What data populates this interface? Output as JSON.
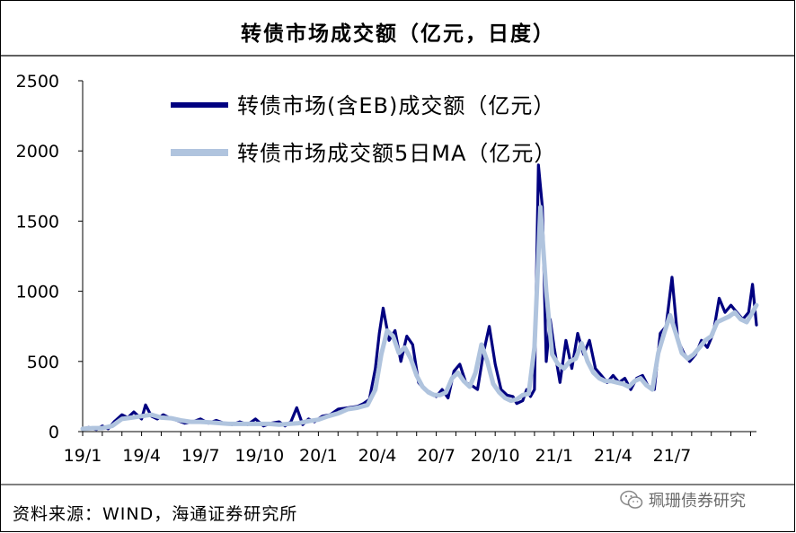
{
  "chart_data": {
    "type": "line",
    "title": "转债市场成交额（亿元，日度）",
    "xlabel": "",
    "ylabel": "",
    "ylim": [
      0,
      2500
    ],
    "yticks": [
      0,
      500,
      1000,
      1500,
      2000,
      2500
    ],
    "x_tick_labels": [
      "19/1",
      "19/4",
      "19/7",
      "19/10",
      "20/1",
      "20/4",
      "20/7",
      "20/10",
      "21/1",
      "21/4",
      "21/7"
    ],
    "x_range_months": [
      0,
      34.3
    ],
    "grid": false,
    "legend_position": "top-left",
    "series": [
      {
        "name": "转债市场(含EB)成交额（亿元）",
        "color": "#000080",
        "x": [
          0,
          0.3,
          0.7,
          1,
          1.3,
          1.6,
          2,
          2.3,
          2.6,
          3,
          3.2,
          3.5,
          3.8,
          4.1,
          4.4,
          4.8,
          5.2,
          5.6,
          6,
          6.4,
          6.8,
          7.2,
          7.6,
          8,
          8.4,
          8.8,
          9.2,
          9.6,
          10,
          10.3,
          10.6,
          10.9,
          11.2,
          11.5,
          11.8,
          12.2,
          12.6,
          13,
          13.5,
          14,
          14.3,
          14.6,
          14.9,
          15.1,
          15.3,
          15.6,
          15.9,
          16.2,
          16.5,
          16.8,
          17.1,
          17.4,
          17.7,
          18,
          18.3,
          18.6,
          18.9,
          19.2,
          19.5,
          19.8,
          20.1,
          20.4,
          20.7,
          21,
          21.3,
          21.6,
          21.9,
          22.1,
          22.4,
          22.6,
          22.8,
          23,
          23.2,
          23.4,
          23.6,
          23.8,
          24,
          24.3,
          24.6,
          24.9,
          25.2,
          25.5,
          25.8,
          26.1,
          26.4,
          26.7,
          27,
          27.3,
          27.6,
          27.9,
          28.2,
          28.5,
          28.8,
          29.1,
          29.4,
          29.7,
          30,
          30.3,
          30.6,
          30.9,
          31.2,
          31.5,
          31.8,
          32.1,
          32.4,
          32.7,
          33,
          33.3,
          33.6,
          33.9,
          34.1,
          34.3
        ],
        "values": [
          20,
          30,
          15,
          40,
          20,
          70,
          120,
          100,
          140,
          90,
          190,
          110,
          90,
          120,
          100,
          80,
          60,
          70,
          90,
          60,
          80,
          60,
          50,
          70,
          50,
          90,
          40,
          60,
          70,
          40,
          70,
          170,
          50,
          90,
          70,
          110,
          120,
          160,
          170,
          180,
          200,
          230,
          450,
          700,
          880,
          650,
          720,
          500,
          680,
          620,
          350,
          300,
          280,
          250,
          300,
          240,
          430,
          480,
          350,
          330,
          300,
          560,
          750,
          480,
          300,
          260,
          250,
          200,
          220,
          300,
          250,
          300,
          1900,
          1600,
          500,
          800,
          600,
          350,
          650,
          450,
          700,
          550,
          650,
          450,
          400,
          350,
          400,
          350,
          380,
          300,
          380,
          400,
          320,
          300,
          700,
          750,
          1100,
          650,
          560,
          500,
          550,
          650,
          600,
          700,
          950,
          850,
          900,
          850,
          800,
          850,
          1050,
          760
        ],
        "values_note": "approximate daily turnover read from chart (100 million yuan)"
      },
      {
        "name": "转债市场成交额5日MA（亿元）",
        "color": "#b0c4de",
        "x": [
          0,
          0.5,
          1,
          1.5,
          2,
          2.5,
          3,
          3.5,
          4,
          4.5,
          5,
          5.5,
          6,
          6.5,
          7,
          7.5,
          8,
          8.5,
          9,
          9.5,
          10,
          10.5,
          11,
          11.5,
          12,
          12.5,
          13,
          13.5,
          14,
          14.5,
          14.9,
          15.2,
          15.5,
          15.8,
          16.1,
          16.4,
          16.7,
          17,
          17.3,
          17.6,
          17.9,
          18.2,
          18.5,
          18.8,
          19.1,
          19.4,
          19.7,
          20,
          20.3,
          20.6,
          20.9,
          21.2,
          21.5,
          21.8,
          22.1,
          22.4,
          22.7,
          23,
          23.3,
          23.6,
          23.9,
          24.2,
          24.5,
          24.8,
          25.1,
          25.4,
          25.7,
          26,
          26.3,
          26.6,
          26.9,
          27.2,
          27.5,
          27.8,
          28.1,
          28.4,
          28.7,
          29,
          29.3,
          29.6,
          29.9,
          30.2,
          30.5,
          30.8,
          31.1,
          31.4,
          31.7,
          32,
          32.3,
          32.6,
          32.9,
          33.2,
          33.5,
          33.8,
          34.1,
          34.3
        ],
        "values": [
          20,
          25,
          25,
          40,
          90,
          100,
          110,
          120,
          100,
          95,
          80,
          70,
          70,
          65,
          60,
          55,
          55,
          55,
          55,
          55,
          50,
          55,
          60,
          75,
          85,
          110,
          130,
          160,
          170,
          190,
          300,
          550,
          720,
          680,
          560,
          600,
          520,
          400,
          320,
          280,
          260,
          260,
          280,
          380,
          420,
          360,
          320,
          420,
          620,
          500,
          340,
          280,
          240,
          220,
          230,
          260,
          270,
          600,
          1600,
          1000,
          550,
          480,
          450,
          500,
          520,
          630,
          500,
          420,
          380,
          360,
          360,
          350,
          340,
          320,
          360,
          380,
          330,
          300,
          560,
          700,
          830,
          700,
          560,
          520,
          550,
          600,
          650,
          680,
          780,
          800,
          820,
          850,
          800,
          780,
          850,
          900
        ]
      }
    ]
  },
  "source_text": "资料来源：WIND，海通证券研究所",
  "watermark_text": "珮珊债券研究"
}
